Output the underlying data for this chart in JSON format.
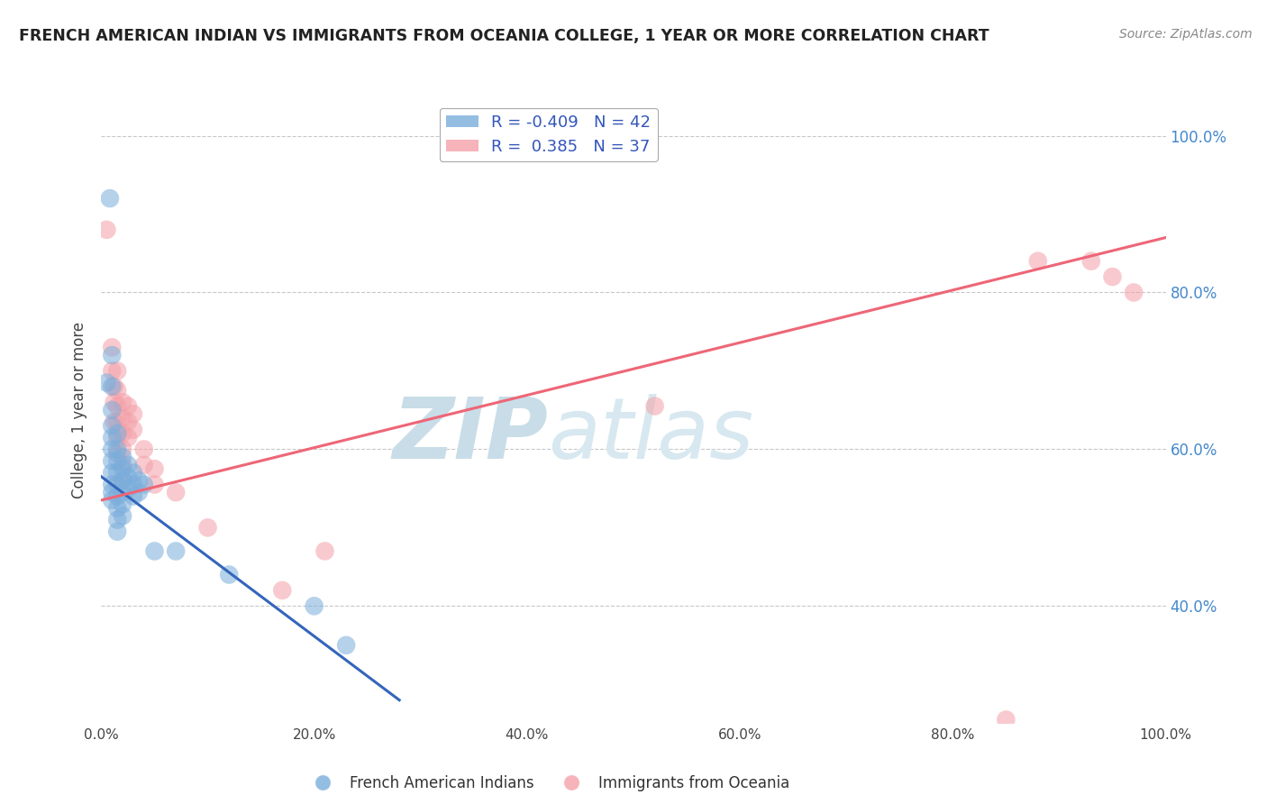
{
  "title": "FRENCH AMERICAN INDIAN VS IMMIGRANTS FROM OCEANIA COLLEGE, 1 YEAR OR MORE CORRELATION CHART",
  "source": "Source: ZipAtlas.com",
  "ylabel": "College, 1 year or more",
  "watermark_zip": "ZIP",
  "watermark_atlas": "atlas",
  "R_blue": -0.409,
  "N_blue": 42,
  "R_pink": 0.385,
  "N_pink": 37,
  "xlim": [
    0.0,
    1.0
  ],
  "ylim": [
    0.25,
    1.05
  ],
  "xtick_vals": [
    0.0,
    0.2,
    0.4,
    0.6,
    0.8,
    1.0
  ],
  "xtick_labels": [
    "0.0%",
    "20.0%",
    "40.0%",
    "60.0%",
    "80.0%",
    "100.0%"
  ],
  "ytick_vals": [
    0.4,
    0.6,
    0.8,
    1.0
  ],
  "ytick_labels_right": [
    "40.0%",
    "60.0%",
    "80.0%",
    "100.0%"
  ],
  "legend_label_blue": "French American Indians",
  "legend_label_pink": "Immigrants from Oceania",
  "blue_scatter": [
    [
      0.005,
      0.685
    ],
    [
      0.008,
      0.92
    ],
    [
      0.01,
      0.72
    ],
    [
      0.01,
      0.68
    ],
    [
      0.01,
      0.65
    ],
    [
      0.01,
      0.63
    ],
    [
      0.01,
      0.615
    ],
    [
      0.01,
      0.6
    ],
    [
      0.01,
      0.585
    ],
    [
      0.01,
      0.57
    ],
    [
      0.01,
      0.555
    ],
    [
      0.01,
      0.545
    ],
    [
      0.01,
      0.535
    ],
    [
      0.015,
      0.62
    ],
    [
      0.015,
      0.6
    ],
    [
      0.015,
      0.585
    ],
    [
      0.015,
      0.57
    ],
    [
      0.015,
      0.555
    ],
    [
      0.015,
      0.54
    ],
    [
      0.015,
      0.525
    ],
    [
      0.015,
      0.51
    ],
    [
      0.015,
      0.495
    ],
    [
      0.02,
      0.59
    ],
    [
      0.02,
      0.575
    ],
    [
      0.02,
      0.56
    ],
    [
      0.02,
      0.545
    ],
    [
      0.02,
      0.53
    ],
    [
      0.02,
      0.515
    ],
    [
      0.025,
      0.58
    ],
    [
      0.025,
      0.565
    ],
    [
      0.025,
      0.55
    ],
    [
      0.03,
      0.57
    ],
    [
      0.03,
      0.555
    ],
    [
      0.03,
      0.54
    ],
    [
      0.035,
      0.56
    ],
    [
      0.035,
      0.545
    ],
    [
      0.04,
      0.555
    ],
    [
      0.05,
      0.47
    ],
    [
      0.07,
      0.47
    ],
    [
      0.12,
      0.44
    ],
    [
      0.2,
      0.4
    ],
    [
      0.23,
      0.35
    ]
  ],
  "pink_scatter": [
    [
      0.005,
      0.88
    ],
    [
      0.01,
      0.73
    ],
    [
      0.01,
      0.7
    ],
    [
      0.012,
      0.68
    ],
    [
      0.012,
      0.66
    ],
    [
      0.012,
      0.635
    ],
    [
      0.015,
      0.7
    ],
    [
      0.015,
      0.675
    ],
    [
      0.015,
      0.655
    ],
    [
      0.015,
      0.635
    ],
    [
      0.015,
      0.615
    ],
    [
      0.015,
      0.595
    ],
    [
      0.02,
      0.66
    ],
    [
      0.02,
      0.64
    ],
    [
      0.02,
      0.62
    ],
    [
      0.02,
      0.6
    ],
    [
      0.02,
      0.58
    ],
    [
      0.02,
      0.56
    ],
    [
      0.025,
      0.655
    ],
    [
      0.025,
      0.635
    ],
    [
      0.025,
      0.615
    ],
    [
      0.03,
      0.645
    ],
    [
      0.03,
      0.625
    ],
    [
      0.04,
      0.6
    ],
    [
      0.04,
      0.58
    ],
    [
      0.05,
      0.575
    ],
    [
      0.05,
      0.555
    ],
    [
      0.07,
      0.545
    ],
    [
      0.1,
      0.5
    ],
    [
      0.17,
      0.42
    ],
    [
      0.21,
      0.47
    ],
    [
      0.52,
      0.655
    ],
    [
      0.85,
      0.255
    ],
    [
      0.88,
      0.84
    ],
    [
      0.93,
      0.84
    ],
    [
      0.95,
      0.82
    ],
    [
      0.97,
      0.8
    ]
  ],
  "blue_line_x": [
    0.0,
    0.28
  ],
  "blue_line_y": [
    0.565,
    0.28
  ],
  "pink_line_x": [
    0.0,
    1.0
  ],
  "pink_line_y": [
    0.535,
    0.87
  ],
  "color_blue": "#7AADDB",
  "color_pink": "#F4A0A8",
  "color_blue_line": "#3366BB",
  "color_pink_line": "#EE6677",
  "grid_color": "#C8C8C8",
  "background_color": "#FFFFFF",
  "title_color": "#222222",
  "axis_label_color": "#444444",
  "tick_color_right": "#4488CC",
  "watermark_color": "#D0E8F0"
}
